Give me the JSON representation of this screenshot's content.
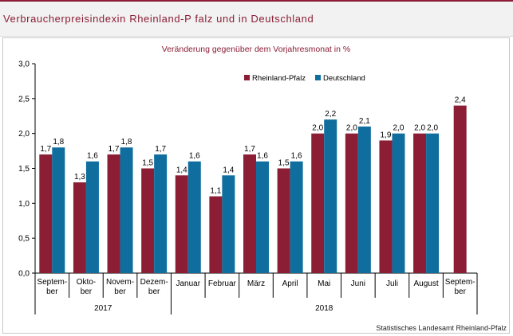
{
  "header": {
    "title": "Verbraucherpreisindexin Rheinland-P falz und in Deutschland"
  },
  "colors": {
    "rlp": "#8b1e35",
    "de": "#0f6e9e",
    "accent": "#8b1e35"
  },
  "source": "Statistisches Landesamt Rheinland-Pfalz",
  "chart_data": {
    "type": "bar",
    "title": "Veränderung  gegenüber  dem  Vorjahresmonat  in %",
    "xlabel": "",
    "ylabel": "",
    "ylim": [
      0,
      3.0
    ],
    "yticks": [
      "0,0",
      "0,5",
      "1,0",
      "1,5",
      "2,0",
      "2,5",
      "3,0"
    ],
    "grid": false,
    "legend": "top-right",
    "categories": [
      [
        "Septem-",
        "ber"
      ],
      [
        "Okto-",
        "ber"
      ],
      [
        "Novem-",
        "ber"
      ],
      [
        "Dezem-",
        "ber"
      ],
      [
        "Januar"
      ],
      [
        "Februar"
      ],
      [
        "März"
      ],
      [
        "April"
      ],
      [
        "Mai"
      ],
      [
        "Juni"
      ],
      [
        "Juli"
      ],
      [
        "August"
      ],
      [
        "Septem-",
        "ber"
      ]
    ],
    "year_groups": [
      {
        "label": "2017",
        "start": 0,
        "end": 3
      },
      {
        "label": "2018",
        "start": 4,
        "end": 12
      }
    ],
    "series": [
      {
        "name": "Rheinland-Pfalz",
        "color": "#8b1e35",
        "values": [
          1.7,
          1.3,
          1.7,
          1.5,
          1.4,
          1.1,
          1.7,
          1.5,
          2.0,
          2.0,
          1.9,
          2.0,
          2.4
        ],
        "labels": [
          "1,7",
          "1,3",
          "1,7",
          "1,5",
          "1,4",
          "1,1",
          "1,7",
          "1,5",
          "2,0",
          "2,0",
          "1,9",
          "2,0",
          "2,4"
        ]
      },
      {
        "name": "Deutschland",
        "color": "#0f6e9e",
        "values": [
          1.8,
          1.6,
          1.8,
          1.7,
          1.6,
          1.4,
          1.6,
          1.6,
          2.2,
          2.1,
          2.0,
          2.0,
          null
        ],
        "labels": [
          "1,8",
          "1,6",
          "1,8",
          "1,7",
          "1,6",
          "1,4",
          "1,6",
          "1,6",
          "2,2",
          "2,1",
          "2,0",
          "2,0",
          ""
        ]
      }
    ]
  }
}
